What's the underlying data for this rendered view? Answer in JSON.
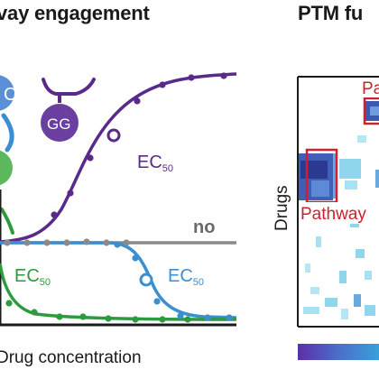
{
  "left_panel": {
    "title": "vay engagement",
    "node_c": "C",
    "node_gg": "GG",
    "ec50_purple": "EC",
    "ec50_purple_sub": "50",
    "no_label": "no",
    "ec50_green": "EC",
    "ec50_green_sub": "50",
    "ec50_blue": "EC",
    "ec50_blue_sub": "50",
    "x_axis_label": "Drug concentration"
  },
  "right_panel": {
    "title": "PTM fu",
    "y_axis_label": "Drugs",
    "box_top_label": "Pa",
    "box_bottom_label": "Pathway"
  },
  "colors": {
    "purple": "#5a2a8a",
    "blue": "#3a8fd0",
    "green": "#2e9a3e",
    "gray": "#8a8a8a",
    "red": "#d02030",
    "heat_dark": "#2a3a90",
    "heat_light": "#8fd6ec"
  }
}
